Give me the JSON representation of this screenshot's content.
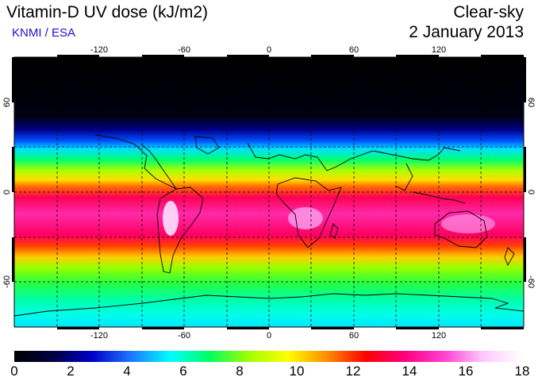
{
  "header": {
    "title": "Vitamin-D UV dose (kJ/m2)",
    "credit": "KNMI / ESA",
    "mode": "Clear-sky",
    "date": "2 January 2013"
  },
  "map": {
    "lon_ticks": [
      "-120",
      "-60",
      "0",
      "60",
      "120"
    ],
    "lat_ticks": [
      "60",
      "0",
      "-60"
    ],
    "lat_ticks_right": [
      "60",
      "0",
      "-60"
    ],
    "lon_range": [
      -180,
      180
    ],
    "lat_range": [
      -90,
      90
    ]
  },
  "colorbar": {
    "labels": [
      "0",
      "2",
      "4",
      "6",
      "8",
      "10",
      "12",
      "14",
      "16",
      "18"
    ],
    "colors": [
      "#000000",
      "#000040",
      "#0000c8",
      "#1e78ff",
      "#00ffff",
      "#00ff60",
      "#a0ff00",
      "#ffff00",
      "#ff8c00",
      "#ff0000",
      "#ff0080",
      "#ff40d0",
      "#ffc8ff",
      "#ffffff"
    ]
  }
}
